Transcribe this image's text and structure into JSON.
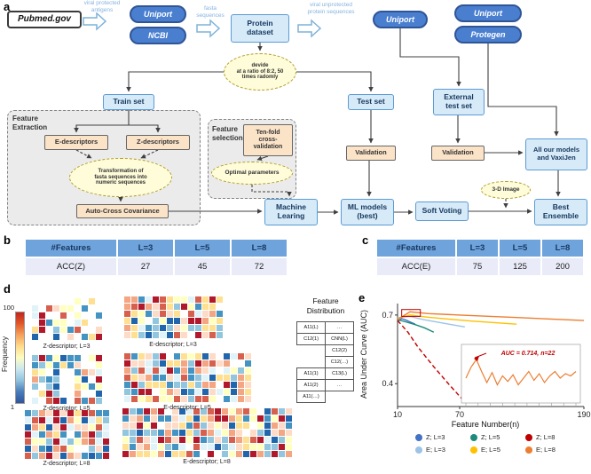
{
  "panel_labels": {
    "a": "a",
    "b": "b",
    "c": "c",
    "d": "d",
    "e": "e"
  },
  "flowchart": {
    "pubmed": "Pubmed.gov",
    "uniport_top": "Uniport",
    "ncbi": "NCBI",
    "protein_dataset": "Protein\ndataset",
    "uniport_mid": "Uniport",
    "uniport_right": "Uniport",
    "protegen": "Protegen",
    "divide_note": "devide\nat a ratio of 8:2, 50\ntimes radomly",
    "train_set": "Train set",
    "test_set": "Test set",
    "external_test_set": "External\ntest set",
    "feature_extraction": "Feature\nExtraction",
    "e_descriptors": "E-descriptors",
    "z_descriptors": "Z-descriptors",
    "transformation_note": "Transformation of\nfasta sequences into\nnumeric sequences",
    "auto_cross_covariance": "Auto-Cross Covariance",
    "feature_selection": "Feature\nselection",
    "ten_fold": "Ten-fold\ncross-\nvalidation",
    "optimal_parameters": "Optimal parameters",
    "validation_test": "Validation",
    "validation_external": "Validation",
    "all_models_vaxijen": "All our models\nand VaxiJen",
    "machine_learning": "Machine\nLearing",
    "ml_models_best": "ML models\n(best)",
    "soft_voting": "Soft Voting",
    "image_3d": "3-D Image",
    "best_ensemble": "Best\nEnsemble",
    "arrow_labels": {
      "viral_protected": "viral protected\nantigens",
      "fasta": "fasta\nsequences",
      "viral_unprotected": "viral unprotected\nprotein sequences"
    }
  },
  "table_b": {
    "headers": [
      "#Features",
      "L=3",
      "L=5",
      "L=8"
    ],
    "row_label": "ACC(Z)",
    "values": [
      "27",
      "45",
      "72"
    ]
  },
  "table_c": {
    "headers": [
      "#Features",
      "L=3",
      "L=5",
      "L=8"
    ],
    "row_label": "ACC(E)",
    "values": [
      "75",
      "125",
      "200"
    ]
  },
  "heatmaps": {
    "frequency_label": "Frequency",
    "scale_max": "100",
    "scale_min": "1",
    "palette": [
      "#b2182b",
      "#d6604d",
      "#f4a582",
      "#fddbc7",
      "#fee090",
      "#ffffbf",
      "#e0f3f8",
      "#92c5de",
      "#4393c3",
      "#2166ac"
    ],
    "panels": [
      {
        "label": "Z-descriptor; L=3",
        "cols": 10,
        "rows": 6,
        "density": 0.5,
        "seed": 11
      },
      {
        "label": "E-descriptor; L=3",
        "cols": 14,
        "rows": 6,
        "density": 0.85,
        "seed": 22
      },
      {
        "label": "Z-descriptor; L=5",
        "cols": 10,
        "rows": 7,
        "density": 0.8,
        "seed": 33
      },
      {
        "label": "E-descriptor; L=5",
        "cols": 18,
        "rows": 7,
        "density": 0.9,
        "seed": 44
      },
      {
        "label": "Z-descriptor; L=8",
        "cols": 12,
        "rows": 7,
        "density": 0.92,
        "seed": 55
      },
      {
        "label": "E-descriptor; L=8",
        "cols": 24,
        "rows": 7,
        "density": 0.95,
        "seed": 66
      }
    ]
  },
  "feature_distribution": {
    "title": "Feature\nDistribution",
    "rows": [
      [
        "A11(L)",
        "…"
      ],
      [
        "C12(1)",
        "CNN(L)"
      ],
      [
        "",
        "C12(2)"
      ],
      [
        "",
        "C12(…)"
      ],
      [
        "A11(1)",
        "C13(L)"
      ],
      [
        "A11(2)",
        "…"
      ],
      [
        "A11(…)",
        ""
      ]
    ]
  },
  "chart_data": {
    "type": "line",
    "title": "",
    "xlabel": "Feature Number(n)",
    "ylabel": "Area Under Curve (AUC)",
    "xlim": [
      10,
      190
    ],
    "ylim": [
      0.3,
      0.75
    ],
    "xticks": [
      10,
      70,
      190
    ],
    "yticks": [
      0.7,
      0.4
    ],
    "grid": false,
    "legend_position": "bottom",
    "annotation": "AUC = 0.714, n=22",
    "highlight": {
      "x": [
        14,
        32
      ],
      "y": [
        0.694,
        0.724
      ]
    },
    "series": [
      {
        "name": "Z; L=3",
        "color": "#4472c4",
        "dashed": false,
        "points": [
          [
            10,
            0.672
          ],
          [
            14,
            0.684
          ],
          [
            18,
            0.678
          ],
          [
            22,
            0.67
          ],
          [
            27,
            0.66
          ]
        ]
      },
      {
        "name": "Z; L=5",
        "color": "#1e8a7a",
        "dashed": false,
        "points": [
          [
            10,
            0.68
          ],
          [
            18,
            0.67
          ],
          [
            27,
            0.658
          ],
          [
            36,
            0.644
          ],
          [
            45,
            0.625
          ]
        ]
      },
      {
        "name": "Z; L=8",
        "color": "#c00000",
        "dashed": true,
        "points": [
          [
            10,
            0.676
          ],
          [
            20,
            0.625
          ],
          [
            30,
            0.558
          ],
          [
            45,
            0.474
          ],
          [
            60,
            0.395
          ],
          [
            72,
            0.335
          ]
        ]
      },
      {
        "name": "E; L=3",
        "color": "#9dc3e6",
        "dashed": false,
        "points": [
          [
            10,
            0.688
          ],
          [
            22,
            0.694
          ],
          [
            35,
            0.68
          ],
          [
            50,
            0.668
          ],
          [
            62,
            0.658
          ],
          [
            75,
            0.648
          ]
        ]
      },
      {
        "name": "E; L=5",
        "color": "#ffc000",
        "dashed": false,
        "points": [
          [
            10,
            0.684
          ],
          [
            22,
            0.7
          ],
          [
            40,
            0.69
          ],
          [
            60,
            0.682
          ],
          [
            80,
            0.674
          ],
          [
            100,
            0.668
          ],
          [
            125,
            0.66
          ]
        ]
      },
      {
        "name": "E; L=8",
        "color": "#ed7d31",
        "dashed": false,
        "points": [
          [
            10,
            0.68
          ],
          [
            22,
            0.714
          ],
          [
            40,
            0.706
          ],
          [
            70,
            0.7
          ],
          [
            100,
            0.694
          ],
          [
            130,
            0.688
          ],
          [
            160,
            0.682
          ],
          [
            190,
            0.676
          ]
        ]
      }
    ],
    "inset": {
      "values": [
        0.63,
        0.68,
        0.714,
        0.66,
        0.61,
        0.655,
        0.6,
        0.64,
        0.615,
        0.645,
        0.6,
        0.63,
        0.66,
        0.62,
        0.65,
        0.61,
        0.64,
        0.66,
        0.63,
        0.65,
        0.64,
        0.66
      ]
    }
  }
}
